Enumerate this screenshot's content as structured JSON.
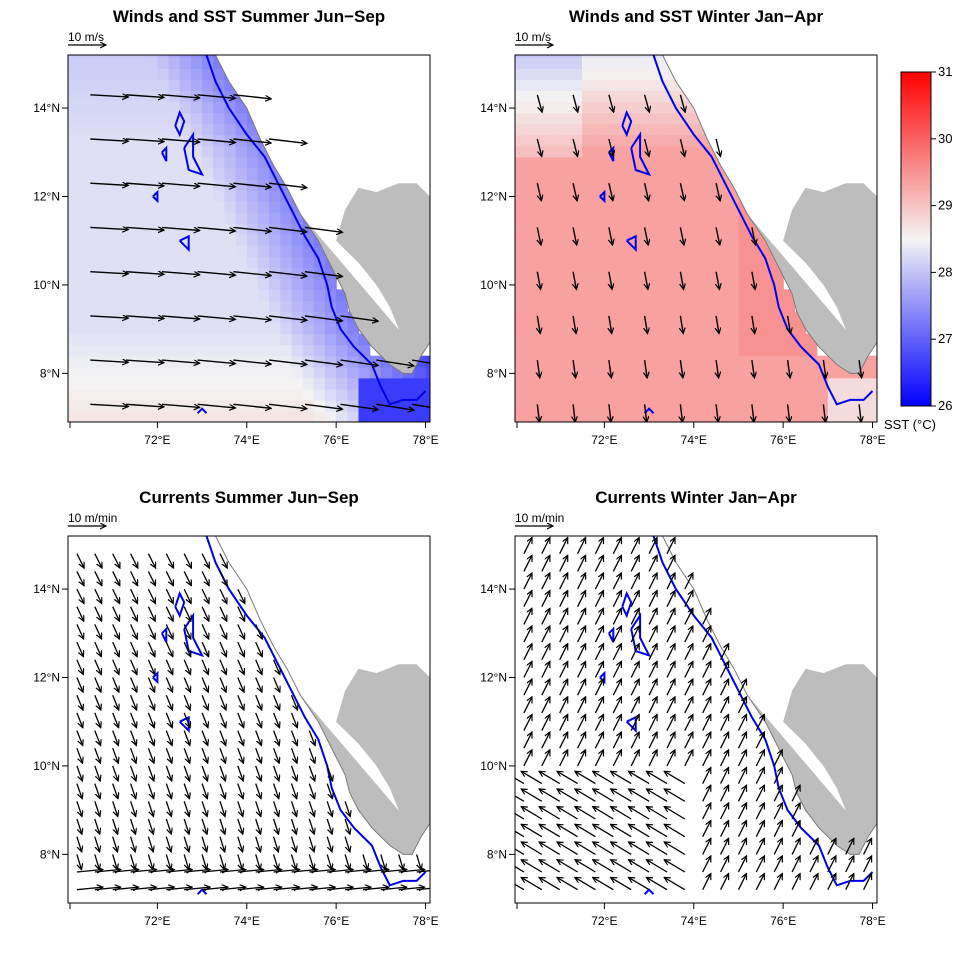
{
  "figure": {
    "panels": [
      {
        "id": "winds-summer",
        "title": "Winds and SST Summer Jun−Sep",
        "kind": "winds",
        "season": "summer",
        "scale_label": "10 m/s"
      },
      {
        "id": "winds-winter",
        "title": "Winds and SST Winter Jan−Apr",
        "kind": "winds",
        "season": "winter",
        "scale_label": "10 m/s"
      },
      {
        "id": "currents-summer",
        "title": "Currents Summer Jun−Sep",
        "kind": "currents",
        "season": "summer",
        "scale_label": "10 m/min"
      },
      {
        "id": "currents-winter",
        "title": "Currents Winter Jan−Apr",
        "kind": "currents",
        "season": "winter",
        "scale_label": "10 m/min"
      }
    ],
    "x_ticks": [
      "72°E",
      "74°E",
      "76°E",
      "78°E"
    ],
    "x_tick_values": [
      72,
      74,
      76,
      78
    ],
    "y_ticks": [
      "8°N",
      "10°N",
      "12°N",
      "14°N"
    ],
    "y_tick_values": [
      8,
      10,
      12,
      14
    ],
    "colorbar": {
      "label": "SST (°C)",
      "ticks": [
        "26",
        "27",
        "28",
        "29",
        "30",
        "31"
      ],
      "min": 26,
      "max": 31,
      "mid": 28.5,
      "low_color": "#0000ff",
      "mid_color": "#f4f4f4",
      "high_color": "#ff0000"
    },
    "colors": {
      "contour": "#0000e6",
      "land": "#bdbdbd",
      "coast": "#7a7a7a",
      "arrow": "#000000"
    }
  },
  "chart_data": [
    {
      "type": "heatmap",
      "title": "Winds and SST Summer Jun−Sep",
      "variable": "SST (°C)",
      "pattern": "coastal upwelling: cool SST (~26.5–27 °C) along the southwest India coast, ~28.3 °C offshore in the north, warmer (~28.7 °C) in the southwest",
      "wind_field": "westerly to west-northwesterly winds, strongest in the south (~10 m/s)",
      "xlim": [
        70,
        78.1
      ],
      "ylim": [
        6.9,
        15.2
      ]
    },
    {
      "type": "heatmap",
      "title": "Winds and SST Winter Jan−Apr",
      "variable": "SST (°C)",
      "pattern": "warm SST (~29.3–29.5 °C) over most of the domain, slightly cooler (~28.3 °C) in the northwest",
      "wind_field": "weak northerly to north-northeasterly winds (~3–4 m/s)",
      "xlim": [
        70,
        78.1
      ],
      "ylim": [
        6.9,
        15.2
      ]
    },
    {
      "type": "scatter",
      "title": "Currents Summer Jun−Sep",
      "variable": "surface currents (m/min)",
      "pattern": "southward flow along the coast and offshore, eastward flow in the south near 7–8°N",
      "xlim": [
        70,
        78.1
      ],
      "ylim": [
        6.9,
        15.2
      ]
    },
    {
      "type": "scatter",
      "title": "Currents Winter Jan−Apr",
      "variable": "surface currents (m/min)",
      "pattern": "northward / north-eastward flow along the coast, north-westward flow offshore in the south",
      "xlim": [
        70,
        78.1
      ],
      "ylim": [
        6.9,
        15.2
      ]
    }
  ]
}
